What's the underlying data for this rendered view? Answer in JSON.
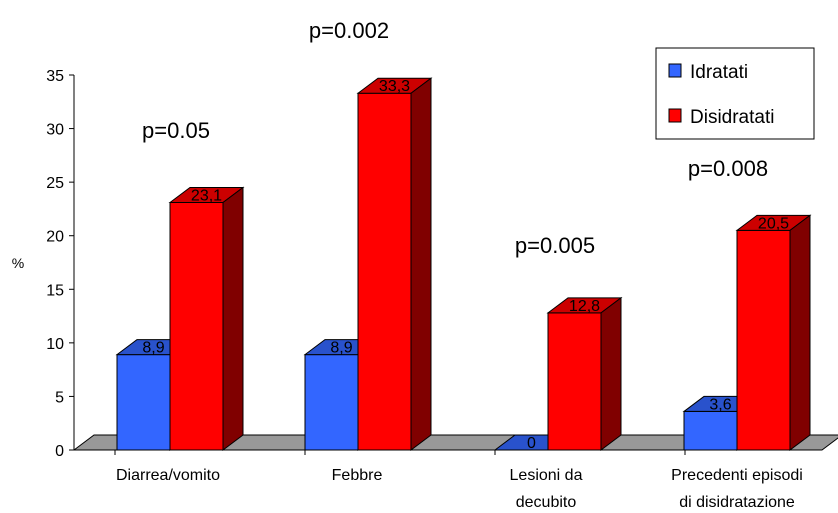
{
  "chart_data": {
    "type": "bar",
    "style": "3d-clustered",
    "ylabel": "%",
    "ylim": [
      0,
      35
    ],
    "yticks": [
      "0",
      "5",
      "10",
      "15",
      "20",
      "25",
      "30",
      "35"
    ],
    "categories": [
      [
        "Diarrea/vomito"
      ],
      [
        "Febbre"
      ],
      [
        "Lesioni da",
        "decubito"
      ],
      [
        "Precedenti episodi",
        "di disidratazione"
      ]
    ],
    "series": [
      {
        "name": "Idratati",
        "color": "#3366ff",
        "values": [
          8.9,
          8.9,
          0,
          3.6
        ],
        "labels": [
          "8,9",
          "8,9",
          "0",
          "3,6"
        ]
      },
      {
        "name": "Disidratati",
        "color": "#ff0000",
        "values": [
          23.1,
          33.3,
          12.8,
          20.5
        ],
        "labels": [
          "23,1",
          "33,3",
          "12,8",
          "20,5"
        ]
      }
    ],
    "annotations": [
      "p=0.05",
      "p=0.002",
      "p=0.005",
      "p=0.008"
    ],
    "legend_position": "top-right",
    "grid": false,
    "floor_color": "#999999"
  }
}
